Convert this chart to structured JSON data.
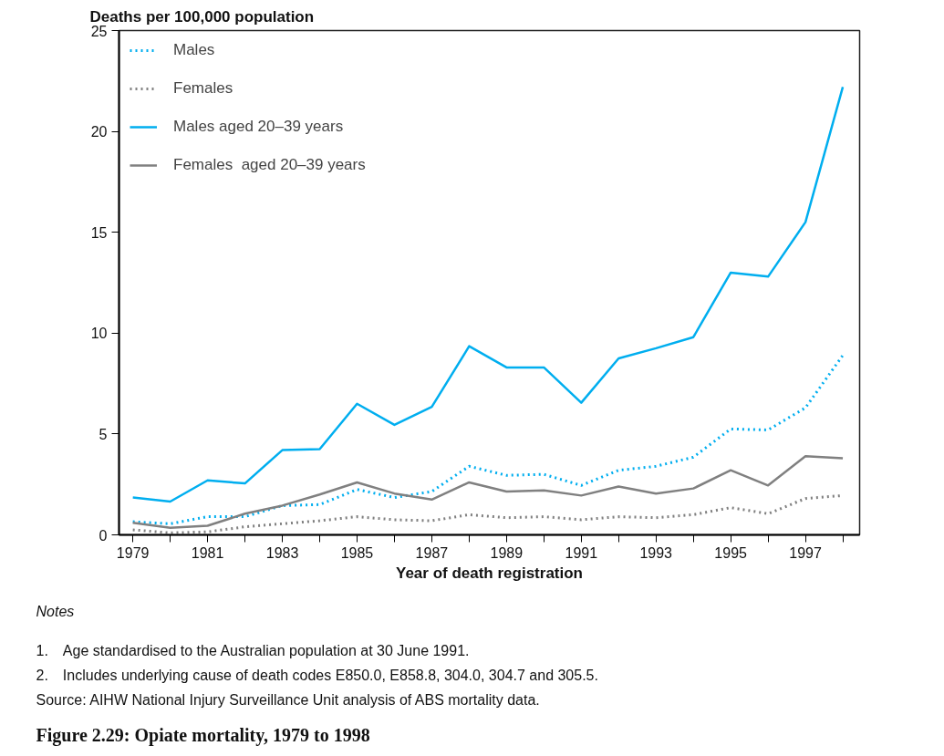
{
  "chart_data": {
    "type": "line",
    "title": "Figure 2.29: Opiate mortality, 1979 to 1998",
    "xlabel": "Year of death registration",
    "ylabel": "Deaths per 100,000 population",
    "x": [
      1979,
      1980,
      1981,
      1982,
      1983,
      1984,
      1985,
      1986,
      1987,
      1988,
      1989,
      1990,
      1991,
      1992,
      1993,
      1994,
      1995,
      1996,
      1997,
      1998
    ],
    "series": [
      {
        "name": "Males",
        "color": "#00aeef",
        "line_style": "dotted",
        "values": [
          0.65,
          0.55,
          0.9,
          0.9,
          1.45,
          1.5,
          2.25,
          1.85,
          2.15,
          3.4,
          2.95,
          3.0,
          2.45,
          3.2,
          3.4,
          3.85,
          5.25,
          5.2,
          6.3,
          8.9
        ]
      },
      {
        "name": "Females",
        "color": "#808080",
        "line_style": "dotted",
        "values": [
          0.25,
          0.1,
          0.15,
          0.4,
          0.55,
          0.7,
          0.9,
          0.75,
          0.7,
          1.0,
          0.85,
          0.9,
          0.75,
          0.9,
          0.85,
          1.0,
          1.35,
          1.05,
          1.8,
          1.95
        ]
      },
      {
        "name": "Males aged 20–39 years",
        "color": "#00aeef",
        "line_style": "solid",
        "values": [
          1.85,
          1.65,
          2.7,
          2.55,
          4.2,
          4.25,
          6.5,
          5.45,
          6.35,
          9.35,
          8.3,
          8.3,
          6.55,
          8.75,
          9.25,
          9.8,
          13.0,
          12.8,
          15.5,
          22.2
        ]
      },
      {
        "name": "Females  aged 20–39 years",
        "color": "#808080",
        "line_style": "solid",
        "values": [
          0.6,
          0.35,
          0.45,
          1.05,
          1.45,
          2.0,
          2.6,
          2.05,
          1.75,
          2.6,
          2.15,
          2.2,
          1.95,
          2.4,
          2.05,
          2.3,
          3.2,
          2.45,
          3.9,
          3.8
        ]
      }
    ],
    "xlim": [
      1978.63,
      1998.45
    ],
    "xticks": [
      1979,
      {
        "value": 1980,
        "label": null
      },
      1981,
      {
        "value": 1982,
        "label": null
      },
      1983,
      {
        "value": 1984,
        "label": null
      },
      1985,
      {
        "value": 1986,
        "label": null
      },
      1987,
      {
        "value": 1988,
        "label": null
      },
      1989,
      {
        "value": 1990,
        "label": null
      },
      1991,
      {
        "value": 1992,
        "label": null
      },
      1993,
      {
        "value": 1994,
        "label": null
      },
      1995,
      {
        "value": 1996,
        "label": null
      },
      1997,
      {
        "value": 1998,
        "label": null
      }
    ],
    "ylim": [
      0,
      25
    ],
    "yticks": [
      0,
      5,
      10,
      15,
      20,
      25
    ],
    "grid": false,
    "legend": "top left",
    "annotations": [
      "Notes",
      "1. Age standardised to the Australian population at 30 June 1991.",
      "2. Includes underlying cause of death codes E850.0, E858.8, 304.0, 304.7 and 305.5.",
      "Source: AIHW National Injury Surveillance Unit analysis of ABS mortality data."
    ]
  }
}
